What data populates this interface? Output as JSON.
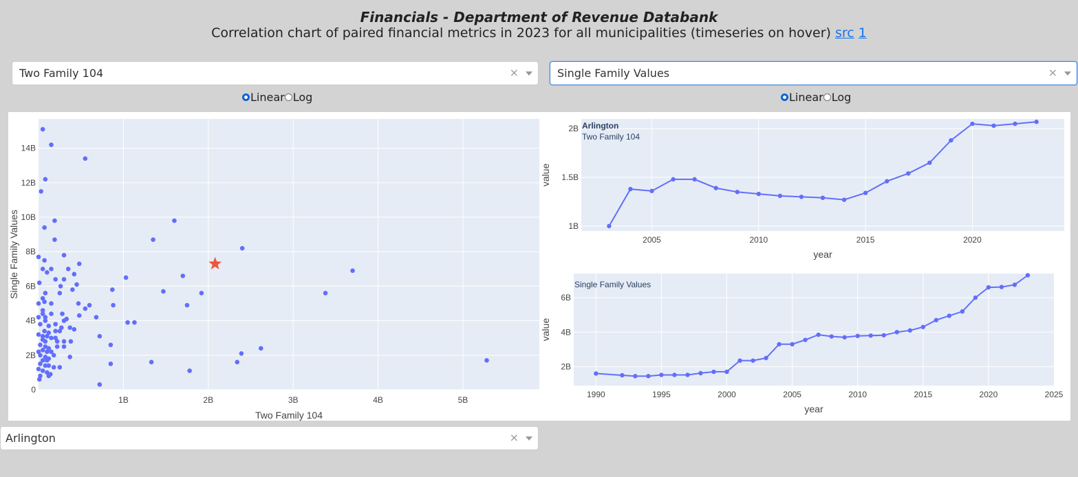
{
  "header": {
    "title": "Financials - Department of Revenue Databank",
    "subtitle": "Correlation chart of paired financial metrics in 2023 for all municipalities (timeseries on hover)",
    "link_src": "src",
    "link_1": "1"
  },
  "controls": {
    "x_metric": "Two Family 104",
    "y_metric": "Single Family Values",
    "clear_symbol": "×",
    "scale_left": {
      "options": [
        "Linear",
        "Log"
      ],
      "selected": "Linear"
    },
    "scale_right": {
      "options": [
        "Linear",
        "Log"
      ],
      "selected": "Linear"
    },
    "municipality": "Arlington"
  },
  "colors": {
    "point": "#636efa",
    "star": "#ef553b",
    "plot_bg": "#e5ecf6"
  },
  "chart_data": [
    {
      "type": "scatter",
      "xlabel": "Two Family 104",
      "ylabel": "Single Family Values",
      "xlim": [
        0,
        5900000000.0
      ],
      "ylim": [
        0,
        15700000000.0
      ],
      "xticks": [
        {
          "v": 1000000000.0,
          "label": "1B"
        },
        {
          "v": 2000000000.0,
          "label": "2B"
        },
        {
          "v": 3000000000.0,
          "label": "3B"
        },
        {
          "v": 4000000000.0,
          "label": "4B"
        },
        {
          "v": 5000000000.0,
          "label": "5B"
        }
      ],
      "yticks": [
        {
          "v": 0,
          "label": "0"
        },
        {
          "v": 2000000000.0,
          "label": "2B"
        },
        {
          "v": 4000000000.0,
          "label": "4B"
        },
        {
          "v": 6000000000.0,
          "label": "6B"
        },
        {
          "v": 8000000000.0,
          "label": "8B"
        },
        {
          "v": 10000000000.0,
          "label": "10B"
        },
        {
          "v": 12000000000.0,
          "label": "12B"
        },
        {
          "v": 14000000000.0,
          "label": "14B"
        }
      ],
      "highlight": {
        "x": 2080000000.0,
        "y": 7300000000.0
      },
      "points": [
        [
          50000000.0,
          15100000000.0
        ],
        [
          150000000.0,
          14200000000.0
        ],
        [
          550000000.0,
          13400000000.0
        ],
        [
          80000000.0,
          12200000000.0
        ],
        [
          30000000.0,
          11500000000.0
        ],
        [
          190000000.0,
          9800000000.0
        ],
        [
          70000000.0,
          9400000000.0
        ],
        [
          190000000.0,
          8700000000.0
        ],
        [
          0,
          7700000000.0
        ],
        [
          70000000.0,
          7500000000.0
        ],
        [
          300000000.0,
          7800000000.0
        ],
        [
          50000000.0,
          7000000000.0
        ],
        [
          100000000.0,
          6800000000.0
        ],
        [
          150000000.0,
          7000000000.0
        ],
        [
          350000000.0,
          7000000000.0
        ],
        [
          420000000.0,
          6700000000.0
        ],
        [
          480000000.0,
          7300000000.0
        ],
        [
          200000000.0,
          6400000000.0
        ],
        [
          300000000.0,
          6400000000.0
        ],
        [
          260000000.0,
          6000000000.0
        ],
        [
          450000000.0,
          6100000000.0
        ],
        [
          400000000.0,
          5800000000.0
        ],
        [
          10000000.0,
          6200000000.0
        ],
        [
          80000000.0,
          5600000000.0
        ],
        [
          250000000.0,
          5600000000.0
        ],
        [
          50000000.0,
          5300000000.0
        ],
        [
          70000000.0,
          5100000000.0
        ],
        [
          150000000.0,
          5000000000.0
        ],
        [
          470000000.0,
          5000000000.0
        ],
        [
          600000000.0,
          4900000000.0
        ],
        [
          550000000.0,
          4700000000.0
        ],
        [
          50000000.0,
          4600000000.0
        ],
        [
          50000000.0,
          4400000000.0
        ],
        [
          80000000.0,
          4200000000.0
        ],
        [
          80000000.0,
          4000000000.0
        ],
        [
          150000000.0,
          4400000000.0
        ],
        [
          280000000.0,
          4400000000.0
        ],
        [
          300000000.0,
          4000000000.0
        ],
        [
          330000000.0,
          4100000000.0
        ],
        [
          480000000.0,
          4300000000.0
        ],
        [
          680000000.0,
          4200000000.0
        ],
        [
          20000000.0,
          3800000000.0
        ],
        [
          120000000.0,
          3700000000.0
        ],
        [
          200000000.0,
          3800000000.0
        ],
        [
          270000000.0,
          3600000000.0
        ],
        [
          370000000.0,
          3600000000.0
        ],
        [
          420000000.0,
          3500000000.0
        ],
        [
          70000000.0,
          3400000000.0
        ],
        [
          120000000.0,
          3300000000.0
        ],
        [
          200000000.0,
          3400000000.0
        ],
        [
          250000000.0,
          3400000000.0
        ],
        [
          50000000.0,
          3100000000.0
        ],
        [
          100000000.0,
          3100000000.0
        ],
        [
          150000000.0,
          3000000000.0
        ],
        [
          200000000.0,
          3000000000.0
        ],
        [
          50000000.0,
          2900000000.0
        ],
        [
          80000000.0,
          2800000000.0
        ],
        [
          220000000.0,
          2800000000.0
        ],
        [
          300000000.0,
          2800000000.0
        ],
        [
          380000000.0,
          2800000000.0
        ],
        [
          20000000.0,
          2600000000.0
        ],
        [
          80000000.0,
          2500000000.0
        ],
        [
          120000000.0,
          2400000000.0
        ],
        [
          220000000.0,
          2500000000.0
        ],
        [
          300000000.0,
          2500000000.0
        ],
        [
          50000000.0,
          2300000000.0
        ],
        [
          100000000.0,
          2200000000.0
        ],
        [
          150000000.0,
          2200000000.0
        ],
        [
          20000000.0,
          2000000000.0
        ],
        [
          80000000.0,
          1900000000.0
        ],
        [
          120000000.0,
          1800000000.0
        ],
        [
          180000000.0,
          2000000000.0
        ],
        [
          370000000.0,
          1900000000.0
        ],
        [
          50000000.0,
          1700000000.0
        ],
        [
          100000000.0,
          1700000000.0
        ],
        [
          20000000.0,
          1500000000.0
        ],
        [
          80000000.0,
          1400000000.0
        ],
        [
          120000000.0,
          1400000000.0
        ],
        [
          180000000.0,
          1300000000.0
        ],
        [
          250000000.0,
          1300000000.0
        ],
        [
          50000000.0,
          1100000000.0
        ],
        [
          100000000.0,
          1000000000.0
        ],
        [
          140000000.0,
          900000000.0
        ],
        [
          20000000.0,
          800000000.0
        ],
        [
          120000000.0,
          800000000.0
        ],
        [
          10000000.0,
          600000000.0
        ],
        [
          0,
          1200000000.0
        ],
        [
          0,
          2200000000.0
        ],
        [
          0,
          3200000000.0
        ],
        [
          0,
          4200000000.0
        ],
        [
          0,
          5000000000.0
        ],
        [
          1030000000.0,
          6500000000.0
        ],
        [
          1350000000.0,
          8700000000.0
        ],
        [
          1470000000.0,
          5700000000.0
        ],
        [
          1600000000.0,
          9800000000.0
        ],
        [
          1700000000.0,
          6600000000.0
        ],
        [
          1750000000.0,
          4900000000.0
        ],
        [
          1920000000.0,
          5600000000.0
        ],
        [
          2400000000.0,
          8200000000.0
        ],
        [
          1050000000.0,
          3900000000.0
        ],
        [
          1130000000.0,
          3900000000.0
        ],
        [
          720000000.0,
          3100000000.0
        ],
        [
          850000000.0,
          2600000000.0
        ],
        [
          850000000.0,
          1500000000.0
        ],
        [
          870000000.0,
          5800000000.0
        ],
        [
          880000000.0,
          4900000000.0
        ],
        [
          1330000000.0,
          1600000000.0
        ],
        [
          1780000000.0,
          1100000000.0
        ],
        [
          2340000000.0,
          1600000000.0
        ],
        [
          2390000000.0,
          2100000000.0
        ],
        [
          2620000000.0,
          2400000000.0
        ],
        [
          720000000.0,
          300000000.0
        ],
        [
          3380000000.0,
          5600000000.0
        ],
        [
          3700000000.0,
          6900000000.0
        ],
        [
          5280000000.0,
          1700000000.0
        ]
      ]
    },
    {
      "type": "line",
      "annotation_title": "Arlington",
      "annotation": "Two Family 104",
      "xlabel": "year",
      "ylabel": "value",
      "xlim": [
        2001.7,
        2024.3
      ],
      "ylim": [
        950000000.0,
        2100000000.0
      ],
      "xticks": [
        2005,
        2010,
        2015,
        2020
      ],
      "yticks": [
        {
          "v": 1000000000.0,
          "label": "1B"
        },
        {
          "v": 1500000000.0,
          "label": "1.5B"
        },
        {
          "v": 2000000000.0,
          "label": "2B"
        }
      ],
      "x": [
        2003,
        2004,
        2005,
        2006,
        2007,
        2008,
        2009,
        2010,
        2011,
        2012,
        2013,
        2014,
        2015,
        2016,
        2017,
        2018,
        2019,
        2020,
        2021,
        2022,
        2023
      ],
      "y": [
        1000000000.0,
        1380000000.0,
        1360000000.0,
        1480000000.0,
        1480000000.0,
        1390000000.0,
        1350000000.0,
        1330000000.0,
        1310000000.0,
        1300000000.0,
        1290000000.0,
        1270000000.0,
        1340000000.0,
        1460000000.0,
        1540000000.0,
        1650000000.0,
        1880000000.0,
        2050000000.0,
        2030000000.0,
        2050000000.0,
        2070000000.0
      ]
    },
    {
      "type": "line",
      "annotation": "Single Family Values",
      "xlabel": "year",
      "ylabel": "value",
      "xlim": [
        1988.3,
        2025
      ],
      "ylim": [
        900000000.0,
        7400000000.0
      ],
      "xticks": [
        1990,
        1995,
        2000,
        2005,
        2010,
        2015,
        2020,
        2025
      ],
      "yticks": [
        {
          "v": 2000000000.0,
          "label": "2B"
        },
        {
          "v": 4000000000.0,
          "label": "4B"
        },
        {
          "v": 6000000000.0,
          "label": "6B"
        }
      ],
      "x": [
        1990,
        1992,
        1993,
        1994,
        1995,
        1996,
        1997,
        1998,
        1999,
        2000,
        2001,
        2002,
        2003,
        2004,
        2005,
        2006,
        2007,
        2008,
        2009,
        2010,
        2011,
        2012,
        2013,
        2014,
        2015,
        2016,
        2017,
        2018,
        2019,
        2020,
        2021,
        2022,
        2023
      ],
      "y": [
        1600000000.0,
        1500000000.0,
        1450000000.0,
        1450000000.0,
        1520000000.0,
        1520000000.0,
        1520000000.0,
        1620000000.0,
        1700000000.0,
        1700000000.0,
        2350000000.0,
        2350000000.0,
        2500000000.0,
        3300000000.0,
        3300000000.0,
        3550000000.0,
        3850000000.0,
        3750000000.0,
        3700000000.0,
        3780000000.0,
        3800000000.0,
        3820000000.0,
        4000000000.0,
        4100000000.0,
        4300000000.0,
        4700000000.0,
        4950000000.0,
        5200000000.0,
        6000000000.0,
        6600000000.0,
        6620000000.0,
        6750000000.0,
        7300000000.0
      ]
    }
  ]
}
